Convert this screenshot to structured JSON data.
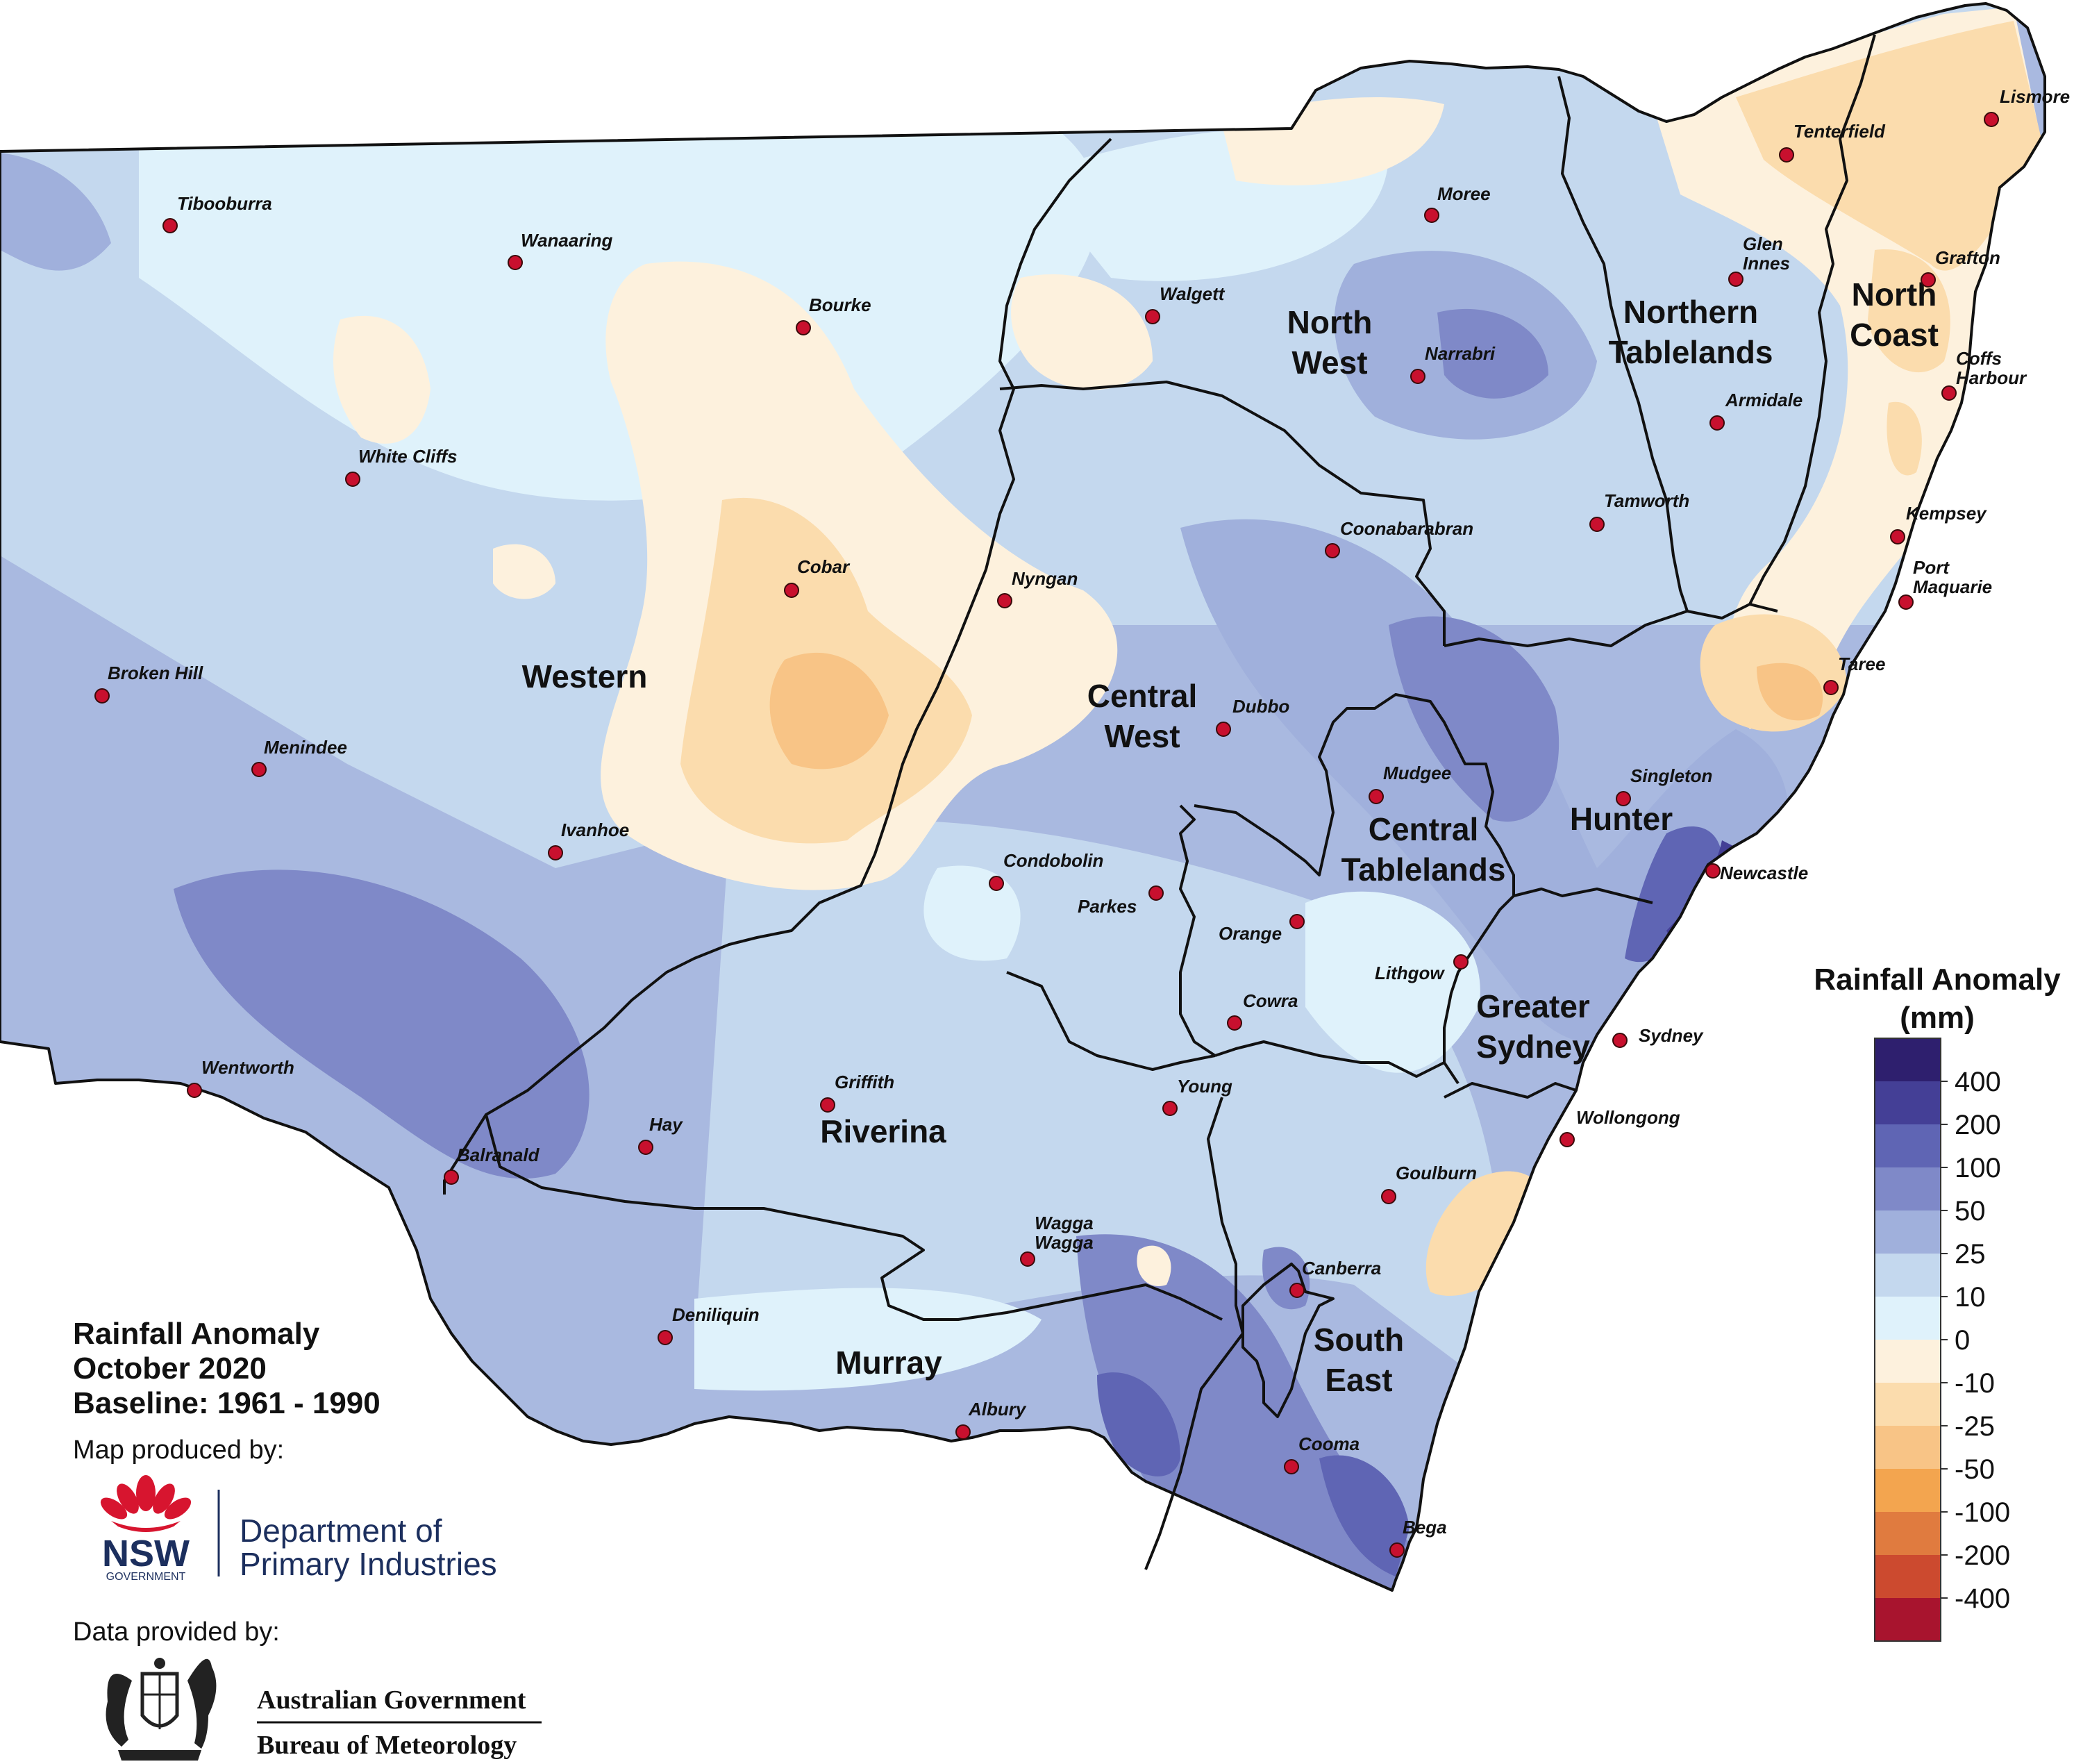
{
  "map": {
    "title_lines": [
      "Rainfall Anomaly",
      "October 2020",
      "Baseline: 1961 - 1990"
    ],
    "produced_by_label": "Map produced by:",
    "data_by_label": "Data provided by:",
    "nsw_logo": {
      "word": "NSW",
      "sub": "GOVERNMENT",
      "org_line1": "Department of",
      "org_line2": "Primary Industries",
      "color": "#1c2f5e",
      "accent": "#d7152f"
    },
    "bom_logo": {
      "line1": "Australian Government",
      "line2": "Bureau of Meteorology"
    },
    "legend": {
      "title_line1": "Rainfall Anomaly",
      "title_line2": "(mm)",
      "ticks": [
        "400",
        "200",
        "100",
        "50",
        "25",
        "10",
        "0",
        "-10",
        "-25",
        "-50",
        "-100",
        "-200",
        "-400"
      ],
      "colors": [
        "#2e1f6e",
        "#443f96",
        "#5f65b4",
        "#7f89c8",
        "#a0b0dc",
        "#c4d8ee",
        "#dff2fb",
        "#fdf1dd",
        "#fbdcad",
        "#f8c486",
        "#f3a54f",
        "#e07b3f",
        "#cc4a2f",
        "#a8142e"
      ]
    },
    "regions": [
      {
        "name": "Western",
        "lines": [
          "Western"
        ]
      },
      {
        "name": "North West",
        "lines": [
          "North",
          "West"
        ]
      },
      {
        "name": "Northern Tablelands",
        "lines": [
          "Northern",
          "Tablelands"
        ]
      },
      {
        "name": "North Coast",
        "lines": [
          "North",
          "Coast"
        ]
      },
      {
        "name": "Central West",
        "lines": [
          "Central",
          "West"
        ]
      },
      {
        "name": "Central Tablelands",
        "lines": [
          "Central",
          "Tablelands"
        ]
      },
      {
        "name": "Hunter",
        "lines": [
          "Hunter"
        ]
      },
      {
        "name": "Greater Sydney",
        "lines": [
          "Greater",
          "Sydney"
        ]
      },
      {
        "name": "Riverina",
        "lines": [
          "Riverina"
        ]
      },
      {
        "name": "Murray",
        "lines": [
          "Murray"
        ]
      },
      {
        "name": "South East",
        "lines": [
          "South",
          "East"
        ]
      }
    ],
    "towns": [
      {
        "name": "Tibooburra",
        "lines": [
          "Tibooburra"
        ]
      },
      {
        "name": "Wanaaring",
        "lines": [
          "Wanaaring"
        ]
      },
      {
        "name": "Bourke",
        "lines": [
          "Bourke"
        ]
      },
      {
        "name": "Walgett",
        "lines": [
          "Walgett"
        ]
      },
      {
        "name": "Moree",
        "lines": [
          "Moree"
        ]
      },
      {
        "name": "Tenterfield",
        "lines": [
          "Tenterfield"
        ]
      },
      {
        "name": "Lismore",
        "lines": [
          "Lismore"
        ]
      },
      {
        "name": "Glen Innes",
        "lines": [
          "Glen",
          "Innes"
        ]
      },
      {
        "name": "Grafton",
        "lines": [
          "Grafton"
        ]
      },
      {
        "name": "Narrabri",
        "lines": [
          "Narrabri"
        ]
      },
      {
        "name": "Coffs Harbour",
        "lines": [
          "Coffs",
          "Harbour"
        ]
      },
      {
        "name": "Armidale",
        "lines": [
          "Armidale"
        ]
      },
      {
        "name": "White Cliffs",
        "lines": [
          "White Cliffs"
        ]
      },
      {
        "name": "Tamworth",
        "lines": [
          "Tamworth"
        ]
      },
      {
        "name": "Coonabarabran",
        "lines": [
          "Coonabarabran"
        ]
      },
      {
        "name": "Kempsey",
        "lines": [
          "Kempsey"
        ]
      },
      {
        "name": "Cobar",
        "lines": [
          "Cobar"
        ]
      },
      {
        "name": "Nyngan",
        "lines": [
          "Nyngan"
        ]
      },
      {
        "name": "Port Maquarie",
        "lines": [
          "Port",
          "Maquarie"
        ]
      },
      {
        "name": "Broken Hill",
        "lines": [
          "Broken Hill"
        ]
      },
      {
        "name": "Taree",
        "lines": [
          "Taree"
        ]
      },
      {
        "name": "Dubbo",
        "lines": [
          "Dubbo"
        ]
      },
      {
        "name": "Menindee",
        "lines": [
          "Menindee"
        ]
      },
      {
        "name": "Mudgee",
        "lines": [
          "Mudgee"
        ]
      },
      {
        "name": "Singleton",
        "lines": [
          "Singleton"
        ]
      },
      {
        "name": "Ivanhoe",
        "lines": [
          "Ivanhoe"
        ]
      },
      {
        "name": "Condobolin",
        "lines": [
          "Condobolin"
        ]
      },
      {
        "name": "Newcastle",
        "lines": [
          "Newcastle"
        ]
      },
      {
        "name": "Parkes",
        "lines": [
          "Parkes"
        ]
      },
      {
        "name": "Orange",
        "lines": [
          "Orange"
        ]
      },
      {
        "name": "Lithgow",
        "lines": [
          "Lithgow"
        ]
      },
      {
        "name": "Cowra",
        "lines": [
          "Cowra"
        ]
      },
      {
        "name": "Sydney",
        "lines": [
          "Sydney"
        ]
      },
      {
        "name": "Wentworth",
        "lines": [
          "Wentworth"
        ]
      },
      {
        "name": "Griffith",
        "lines": [
          "Griffith"
        ]
      },
      {
        "name": "Young",
        "lines": [
          "Young"
        ]
      },
      {
        "name": "Wollongong",
        "lines": [
          "Wollongong"
        ]
      },
      {
        "name": "Hay",
        "lines": [
          "Hay"
        ]
      },
      {
        "name": "Balranald",
        "lines": [
          "Balranald"
        ]
      },
      {
        "name": "Goulburn",
        "lines": [
          "Goulburn"
        ]
      },
      {
        "name": "Wagga Wagga",
        "lines": [
          "Wagga",
          "Wagga"
        ]
      },
      {
        "name": "Canberra",
        "lines": [
          "Canberra"
        ]
      },
      {
        "name": "Deniliquin",
        "lines": [
          "Deniliquin"
        ]
      },
      {
        "name": "Albury",
        "lines": [
          "Albury"
        ]
      },
      {
        "name": "Cooma",
        "lines": [
          "Cooma"
        ]
      },
      {
        "name": "Bega",
        "lines": [
          "Bega"
        ]
      }
    ]
  }
}
